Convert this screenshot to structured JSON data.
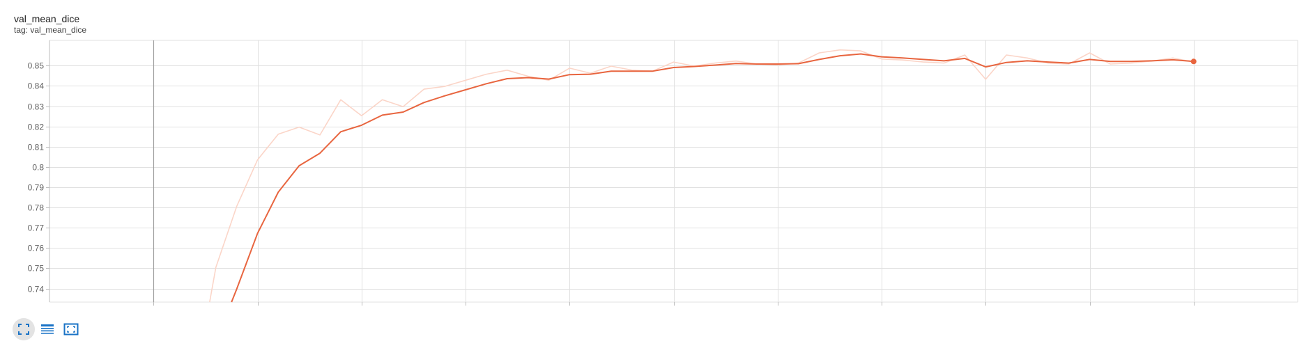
{
  "card": {
    "title": "val_mean_dice",
    "tag": "tag: val_mean_dice"
  },
  "toolbar": {
    "buttons": [
      {
        "icon": "fullscreen-icon",
        "active": true
      },
      {
        "icon": "data-table-icon",
        "active": false
      },
      {
        "icon": "fit-domain-icon",
        "active": false
      }
    ]
  },
  "colors": {
    "smoothed": "#e8653f",
    "raw": "#fbd5c8",
    "grid": "#e0e0e0",
    "zero_line": "#9e9e9e"
  },
  "chart_data": {
    "type": "line",
    "xlim": [
      -5,
      55
    ],
    "ylim": [
      0.7333,
      0.8625
    ],
    "x_ticks": [
      "0",
      "5",
      "10",
      "15",
      "20",
      "25",
      "30",
      "35",
      "40",
      "45",
      "50"
    ],
    "y_ticks": [
      "0.74",
      "0.75",
      "0.76",
      "0.77",
      "0.78",
      "0.79",
      "0.8",
      "0.81",
      "0.82",
      "0.83",
      "0.84",
      "0.85"
    ],
    "grid": true,
    "series": [
      {
        "role": "raw",
        "x": [
          2.7,
          3,
          4,
          5,
          6,
          7,
          8,
          9,
          10,
          11,
          12,
          13,
          14,
          15,
          16,
          17,
          18,
          19,
          20,
          21,
          22,
          23,
          24,
          25,
          26,
          27,
          28,
          29,
          30,
          31,
          32,
          33,
          34,
          35,
          36,
          37,
          38,
          39,
          40,
          41,
          42,
          43,
          44,
          45,
          46,
          47,
          48,
          49,
          50
        ],
        "y": [
          0.7333,
          0.7505,
          0.7805,
          0.8035,
          0.8162,
          0.8197,
          0.8158,
          0.8332,
          0.8253,
          0.8332,
          0.8298,
          0.8384,
          0.8398,
          0.8428,
          0.8458,
          0.8478,
          0.8448,
          0.8428,
          0.8488,
          0.8463,
          0.8498,
          0.8478,
          0.8473,
          0.8518,
          0.8498,
          0.8513,
          0.8523,
          0.8508,
          0.8503,
          0.8513,
          0.8563,
          0.8578,
          0.8573,
          0.8533,
          0.8528,
          0.8518,
          0.8513,
          0.8553,
          0.8433,
          0.8553,
          0.8538,
          0.8513,
          0.8508,
          0.8563,
          0.8508,
          0.8513,
          0.8523,
          0.8538,
          0.8518
        ]
      },
      {
        "role": "smoothed",
        "x": [
          3.75,
          4,
          5,
          6,
          7,
          8,
          9,
          10,
          11,
          12,
          13,
          14,
          15,
          16,
          17,
          18,
          19,
          20,
          21,
          22,
          23,
          24,
          25,
          26,
          27,
          28,
          29,
          30,
          31,
          32,
          33,
          34,
          35,
          36,
          37,
          38,
          39,
          40,
          41,
          42,
          43,
          44,
          45,
          46,
          47,
          48,
          49,
          50
        ],
        "y": [
          0.7333,
          0.7397,
          0.7672,
          0.7876,
          0.8006,
          0.8068,
          0.8174,
          0.8206,
          0.8256,
          0.8271,
          0.8318,
          0.8351,
          0.8381,
          0.8411,
          0.8436,
          0.8441,
          0.8434,
          0.8456,
          0.8458,
          0.8473,
          0.8473,
          0.8473,
          0.8491,
          0.8496,
          0.8503,
          0.8511,
          0.8508,
          0.8508,
          0.851,
          0.8531,
          0.8549,
          0.8558,
          0.8544,
          0.8538,
          0.8531,
          0.8524,
          0.8536,
          0.8494,
          0.8516,
          0.8524,
          0.8518,
          0.8513,
          0.8531,
          0.8521,
          0.8521,
          0.8524,
          0.8529,
          0.8521
        ]
      }
    ]
  }
}
